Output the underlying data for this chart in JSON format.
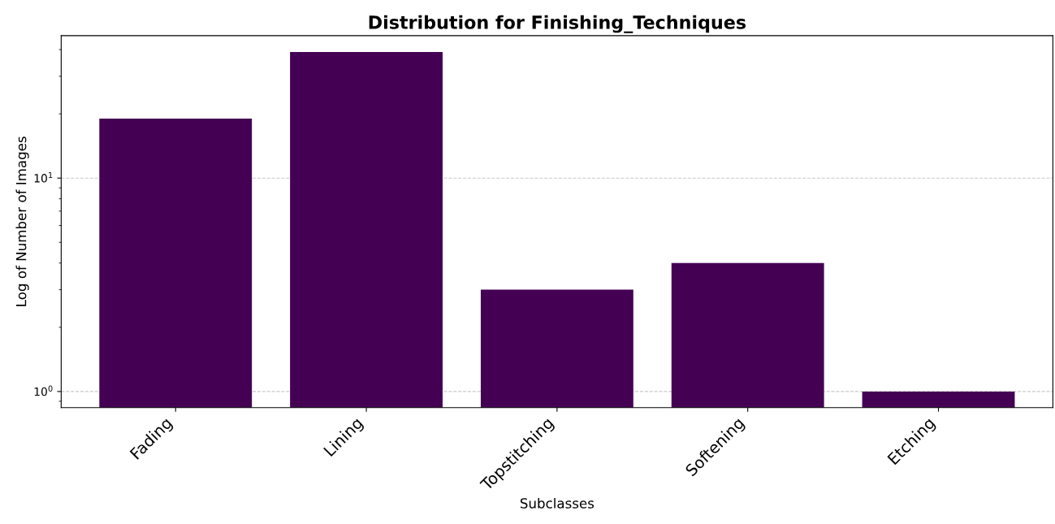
{
  "chart_data": {
    "type": "bar",
    "title": "Distribution for Finishing_Techniques",
    "xlabel": "Subclasses",
    "ylabel": "Log of Number of Images",
    "categories": [
      "Fading",
      "Lining",
      "Topstitching",
      "Softening",
      "Etching"
    ],
    "values": [
      19,
      39,
      3,
      4,
      1
    ],
    "color": "#440154",
    "log": "y",
    "ylim": [
      0.84,
      46.5
    ],
    "yticks": [
      {
        "value": 1,
        "label": "10$^{0}$"
      },
      {
        "value": 10,
        "label": "10$^{1}$"
      }
    ],
    "grid": "y"
  }
}
